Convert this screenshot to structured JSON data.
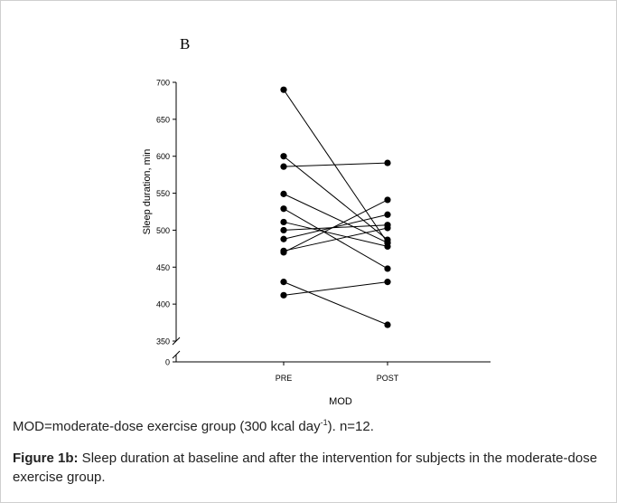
{
  "figure": {
    "panel_letter": "B",
    "note": {
      "before": "MOD=moderate-dose exercise group (300 kcal day",
      "superscript": "-1",
      "after": "). n=12."
    },
    "caption_label": "Figure 1b:",
    "caption_text": " Sleep duration at baseline and after the intervention for subjects in the moderate-dose exercise group."
  },
  "chart_data": {
    "type": "line",
    "ylabel": "Sleep duration, min",
    "xlabel": "MOD",
    "categories": [
      "PRE",
      "POST"
    ],
    "y_ticks": [
      0,
      350,
      400,
      450,
      500,
      550,
      600,
      650,
      700
    ],
    "ylim": [
      350,
      700
    ],
    "axis_break": true,
    "grid": false,
    "color": "#000000",
    "series": [
      {
        "values": [
          690,
          483
        ]
      },
      {
        "values": [
          600,
          487
        ]
      },
      {
        "values": [
          586,
          591
        ]
      },
      {
        "values": [
          549,
          483
        ]
      },
      {
        "values": [
          529,
          448
        ]
      },
      {
        "values": [
          511,
          478
        ]
      },
      {
        "values": [
          500,
          507
        ]
      },
      {
        "values": [
          488,
          521
        ]
      },
      {
        "values": [
          472,
          503
        ]
      },
      {
        "values": [
          470,
          541
        ]
      },
      {
        "values": [
          430,
          372
        ]
      },
      {
        "values": [
          412,
          430
        ]
      }
    ]
  }
}
